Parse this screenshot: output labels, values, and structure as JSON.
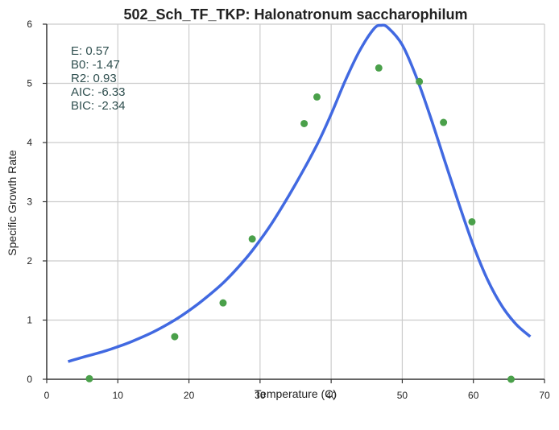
{
  "chart_data": {
    "type": "scatter",
    "title": "502_Sch_TF_TKP: Halonatronum saccharophilum",
    "xlabel": "Temperature (C)",
    "ylabel": "Specific Growth Rate",
    "xlim": [
      0,
      70
    ],
    "ylim": [
      0,
      6
    ],
    "xticks": [
      0,
      10,
      20,
      30,
      40,
      50,
      60,
      70
    ],
    "yticks": [
      0,
      1,
      2,
      3,
      4,
      5,
      6
    ],
    "grid": true,
    "annotation_lines": [
      "E:  0.57",
      "B0:  -1.47",
      "R2:  0.93",
      "AIC: -6.33",
      "BIC: -2.34"
    ],
    "series": [
      {
        "type": "scatter",
        "color": "#4aa04a",
        "x": [
          6,
          18,
          24.8,
          28.9,
          36.2,
          38,
          46.7,
          52.4,
          55.8,
          59.8,
          65.3
        ],
        "y": [
          0.01,
          0.72,
          1.29,
          2.37,
          4.32,
          4.77,
          5.26,
          5.03,
          4.34,
          2.66,
          0.0
        ]
      },
      {
        "type": "line",
        "color": "#4169e1",
        "x": [
          3,
          5,
          8,
          10,
          12,
          15,
          18,
          20,
          22,
          25,
          28,
          30,
          32,
          35,
          38,
          40,
          42,
          44,
          46,
          47,
          48,
          50,
          52,
          54,
          56,
          58,
          60,
          62,
          64,
          66,
          68
        ],
        "y": [
          0.3,
          0.37,
          0.47,
          0.55,
          0.64,
          0.8,
          1.0,
          1.16,
          1.34,
          1.65,
          2.04,
          2.35,
          2.7,
          3.3,
          3.96,
          4.48,
          5.05,
          5.55,
          5.92,
          5.98,
          5.94,
          5.65,
          5.1,
          4.42,
          3.68,
          2.95,
          2.26,
          1.68,
          1.24,
          0.93,
          0.72
        ]
      }
    ]
  }
}
